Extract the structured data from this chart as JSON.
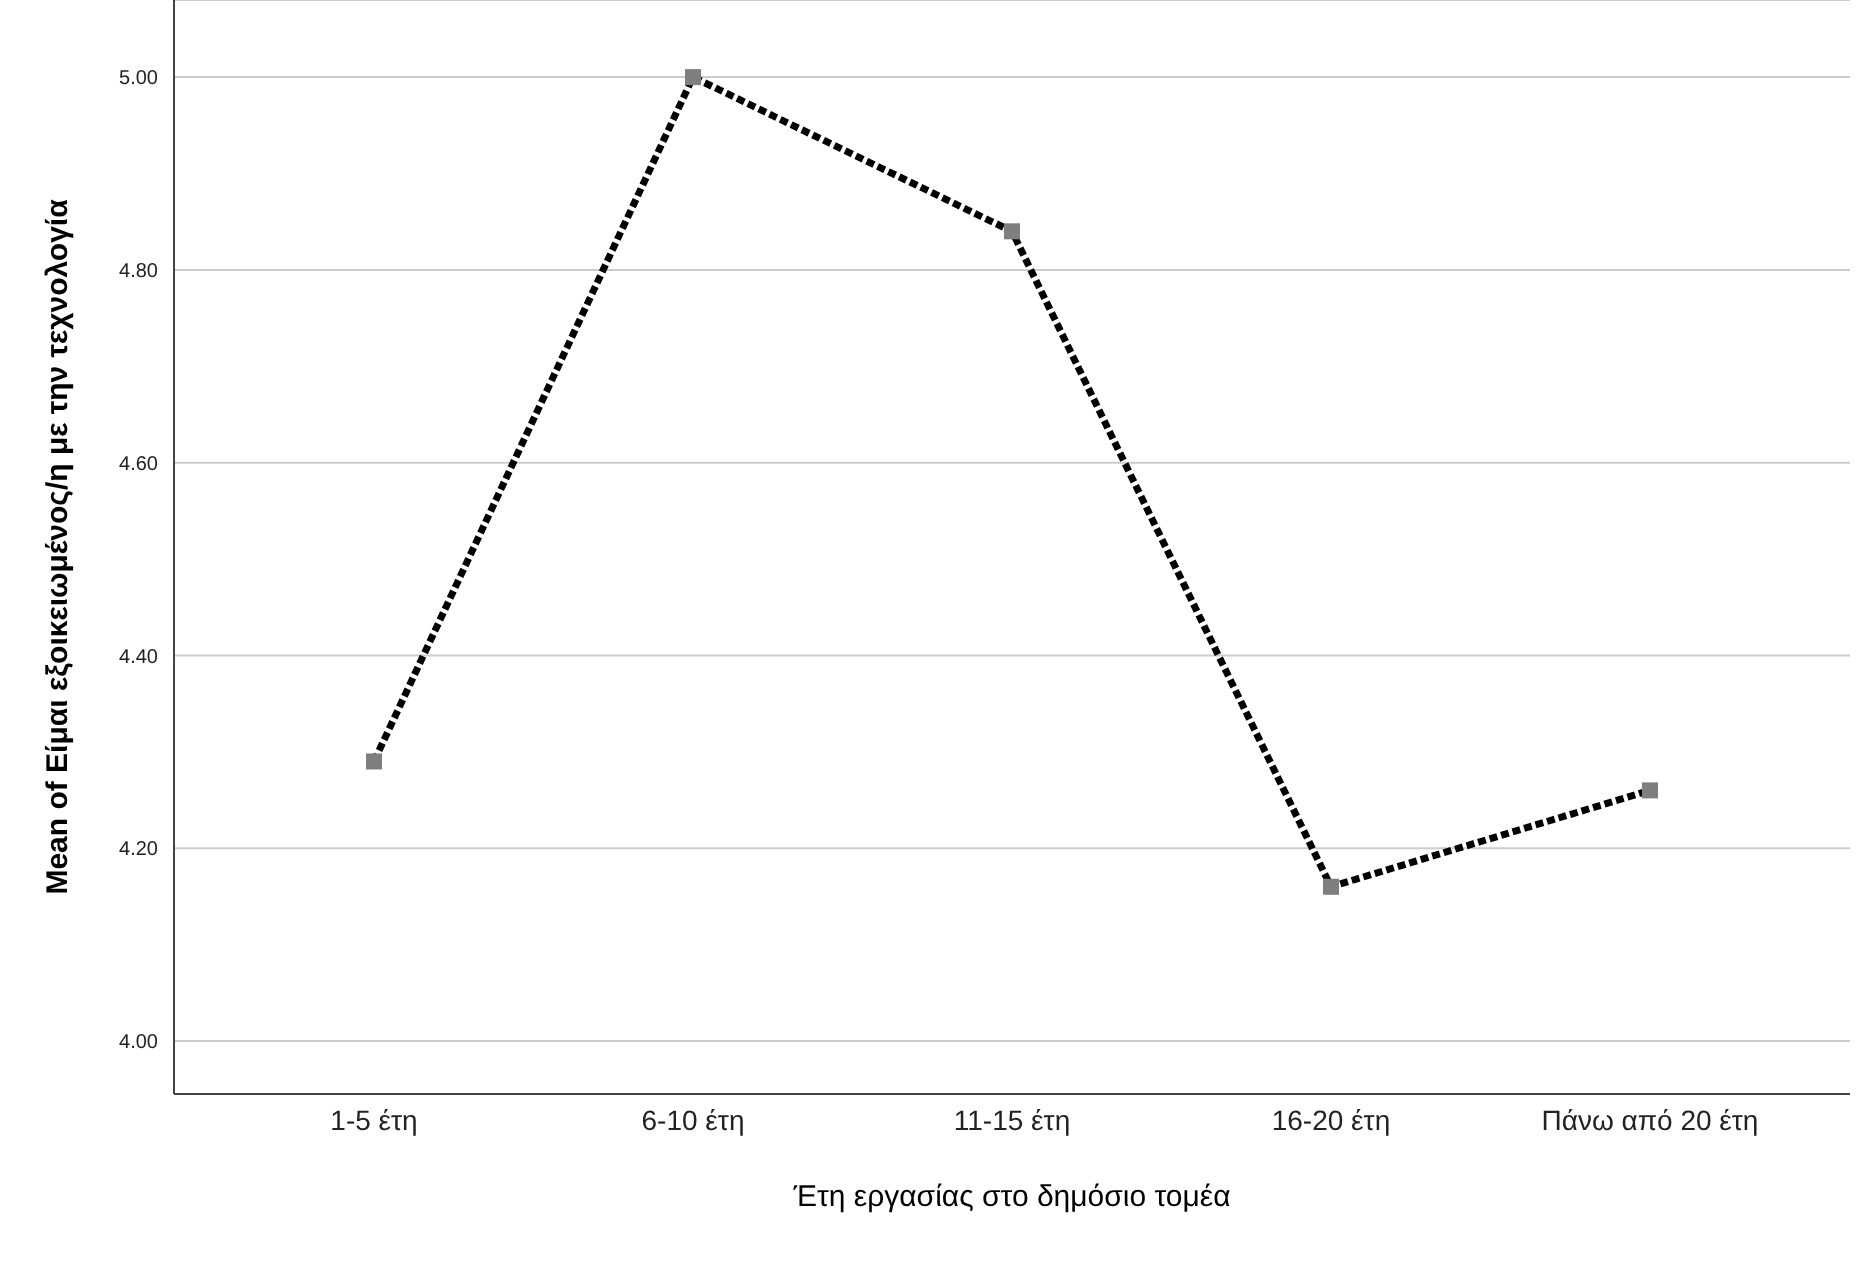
{
  "chart_data": {
    "type": "line",
    "xlabel": "Έτη εργασίας στο δημόσιο τομέα",
    "ylabel": "Mean of Είμαι εξοικειωμένος/η με την τεχνολογία",
    "categories": [
      "1-5 έτη",
      "6-10 έτη",
      "11-15 έτη",
      "16-20 έτη",
      "Πάνω από 20 έτη"
    ],
    "series": [
      {
        "color": "#000000",
        "values": [
          4.29,
          5.0,
          4.84,
          4.16,
          4.26
        ]
      }
    ],
    "marker": "square",
    "line_style": "dotted",
    "grid": "y",
    "ylim": [
      3.945,
      5.08
    ],
    "yticks": [
      {
        "value": 4,
        "label": "4.00"
      },
      {
        "value": 4.2,
        "label": "4.20"
      },
      {
        "value": 4.4,
        "label": "4.40"
      },
      {
        "value": 4.6,
        "label": "4.60"
      },
      {
        "value": 4.8,
        "label": "4.80"
      },
      {
        "value": 5,
        "label": "5.00"
      }
    ]
  }
}
